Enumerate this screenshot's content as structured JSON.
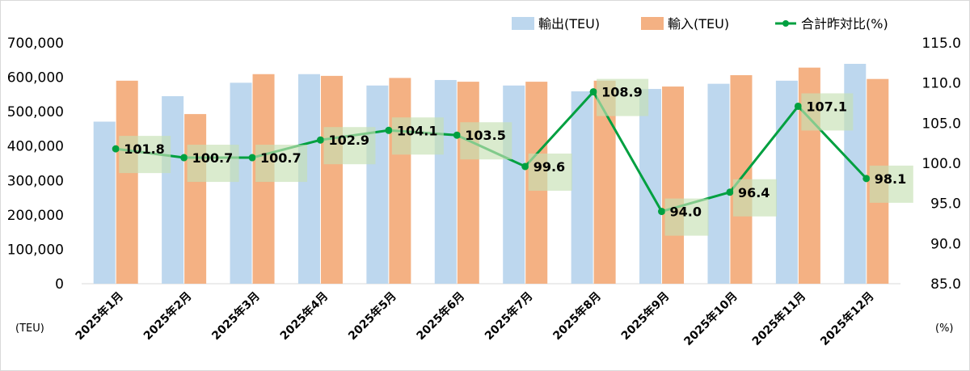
{
  "chart_data": {
    "type": "bar",
    "categories": [
      "2025年1月",
      "2025年2月",
      "2025年3月",
      "2025年4月",
      "2025年5月",
      "2025年6月",
      "2025年7月",
      "2025年8月",
      "2025年9月",
      "2025年10月",
      "2025年11月",
      "2025年12月"
    ],
    "series": [
      {
        "name": "輸出(TEU)",
        "type": "bar",
        "axis": "left",
        "color": "#bdd7ee",
        "values": [
          471000,
          545000,
          584000,
          609000,
          576000,
          592000,
          576000,
          559000,
          566000,
          581000,
          590000,
          639000
        ]
      },
      {
        "name": "輸入(TEU)",
        "type": "bar",
        "axis": "left",
        "color": "#f4b183",
        "values": [
          590000,
          493000,
          609000,
          604000,
          598000,
          587000,
          587000,
          590000,
          573000,
          606000,
          628000,
          595000
        ]
      },
      {
        "name": "合計昨対比(%)",
        "type": "line",
        "axis": "right",
        "color": "#00a040",
        "values": [
          101.8,
          100.7,
          100.7,
          102.9,
          104.1,
          103.5,
          99.6,
          108.9,
          94.0,
          96.4,
          107.1,
          98.1
        ],
        "labels": [
          "101.8",
          "100.7",
          "100.7",
          "102.9",
          "104.1",
          "103.5",
          "99.6",
          "108.9",
          "94.0",
          "96.4",
          "107.1",
          "98.1"
        ]
      }
    ],
    "y_left": {
      "min": 0,
      "max": 700000,
      "step": 100000,
      "ticks": [
        "0",
        "100,000",
        "200,000",
        "300,000",
        "400,000",
        "500,000",
        "600,000",
        "700,000"
      ],
      "unit": "(TEU)"
    },
    "y_right": {
      "min": 85,
      "max": 115,
      "step": 5,
      "ticks": [
        "85.0",
        "90.0",
        "95.0",
        "100.0",
        "105.0",
        "110.0",
        "115.0"
      ],
      "unit": "(%)"
    },
    "grid": false,
    "legend_position": "top-right",
    "label_bg_color": "#c6e0b4"
  }
}
